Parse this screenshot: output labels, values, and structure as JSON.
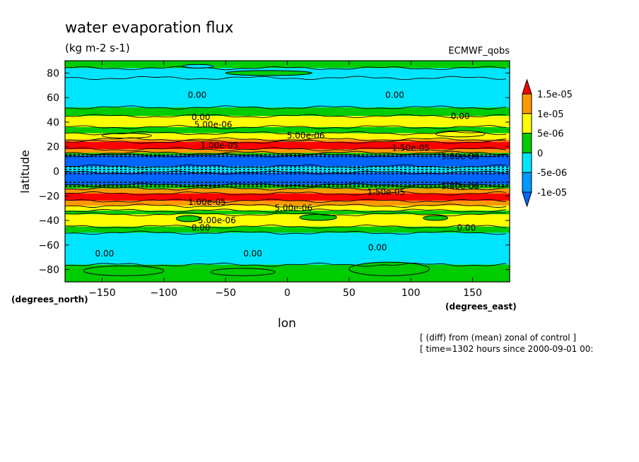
{
  "chart_data": {
    "type": "heatmap",
    "title": "water evaporation flux",
    "subtitle": "(kg m-2 s-1)",
    "model_label": "ECMWF_qobs",
    "xlabel": "lon",
    "ylabel": "latitude",
    "x_units": "(degrees_east)",
    "y_units": "(degrees_north)",
    "xlim": [
      -180,
      180
    ],
    "ylim": [
      -90,
      90
    ],
    "x_ticks": [
      -150,
      -100,
      -50,
      0,
      50,
      100,
      150
    ],
    "y_ticks": [
      80,
      60,
      40,
      20,
      0,
      -20,
      -40,
      -60,
      -80
    ],
    "x_tick_labels": [
      "−150",
      "−100",
      "−50",
      "0",
      "50",
      "100",
      "150"
    ],
    "y_tick_labels": [
      "80",
      "60",
      "40",
      "20",
      "0",
      "−20",
      "−40",
      "−60",
      "−80"
    ],
    "colorbar": {
      "labels": [
        "1.5e-05",
        "1e-05",
        "5e-06",
        "0",
        "-5e-06",
        "-1e-05"
      ],
      "bins": [
        {
          "min": 1.5e-05,
          "max": null,
          "color": "#ff0000"
        },
        {
          "min": 1e-05,
          "max": 1.5e-05,
          "color": "#ff9900"
        },
        {
          "min": 5e-06,
          "max": 1e-05,
          "color": "#ffff00"
        },
        {
          "min": 0,
          "max": 5e-06,
          "color": "#00cc00"
        },
        {
          "min": -5e-06,
          "max": 0,
          "color": "#00e5ff"
        },
        {
          "min": -1e-05,
          "max": -5e-06,
          "color": "#0099ff"
        },
        {
          "min": null,
          "max": -1e-05,
          "color": "#0066ff"
        }
      ]
    },
    "latitude_bands": [
      {
        "lat_max": 90,
        "lat_min": 84,
        "color": "#00cc00"
      },
      {
        "lat_max": 84,
        "lat_min": 76,
        "color": "#00e5ff"
      },
      {
        "lat_max": 76,
        "lat_min": 52,
        "color": "#00e5ff"
      },
      {
        "lat_max": 52,
        "lat_min": 45,
        "color": "#00cc00"
      },
      {
        "lat_max": 45,
        "lat_min": 36,
        "color": "#ffff00"
      },
      {
        "lat_max": 36,
        "lat_min": 31,
        "color": "#00cc00"
      },
      {
        "lat_max": 31,
        "lat_min": 26,
        "color": "#ffff00"
      },
      {
        "lat_max": 26,
        "lat_min": 24,
        "color": "#ff9900"
      },
      {
        "lat_max": 24,
        "lat_min": 18,
        "color": "#ff0000"
      },
      {
        "lat_max": 18,
        "lat_min": 15,
        "color": "#ff9900"
      },
      {
        "lat_max": 15,
        "lat_min": 13,
        "color": "#00cc00"
      },
      {
        "lat_max": 13,
        "lat_min": 4,
        "color": "#0066ff"
      },
      {
        "lat_max": 4,
        "lat_min": -1,
        "color": "#00e5ff"
      },
      {
        "lat_max": -1,
        "lat_min": -11,
        "color": "#0066ff"
      },
      {
        "lat_max": -11,
        "lat_min": -14,
        "color": "#00cc00"
      },
      {
        "lat_max": -14,
        "lat_min": -18,
        "color": "#ff9900"
      },
      {
        "lat_max": -18,
        "lat_min": -24,
        "color": "#ff0000"
      },
      {
        "lat_max": -24,
        "lat_min": -28,
        "color": "#ff9900"
      },
      {
        "lat_max": -28,
        "lat_min": -32,
        "color": "#ffff00"
      },
      {
        "lat_max": -32,
        "lat_min": -35,
        "color": "#00cc00"
      },
      {
        "lat_max": -35,
        "lat_min": -45,
        "color": "#ffff00"
      },
      {
        "lat_max": -45,
        "lat_min": -50,
        "color": "#00cc00"
      },
      {
        "lat_max": -50,
        "lat_min": -76,
        "color": "#00e5ff"
      },
      {
        "lat_max": -76,
        "lat_min": -90,
        "color": "#00cc00"
      }
    ],
    "patches": [
      {
        "lon": [
          -165,
          -100
        ],
        "lat": [
          -85,
          -77
        ],
        "color": "#00cc00"
      },
      {
        "lon": [
          -62,
          -10
        ],
        "lat": [
          -85,
          -79
        ],
        "color": "#00cc00"
      },
      {
        "lon": [
          50,
          115
        ],
        "lat": [
          -85,
          -74
        ],
        "color": "#00cc00"
      },
      {
        "lon": [
          -85,
          -60
        ],
        "lat": [
          87,
          84
        ],
        "color": "#00e5ff"
      },
      {
        "lon": [
          -50,
          20
        ],
        "lat": [
          82,
          78
        ],
        "color": "#00cc00"
      },
      {
        "lon": [
          -90,
          -70
        ],
        "lat": [
          -36,
          -41
        ],
        "color": "#00cc00"
      },
      {
        "lon": [
          10,
          40
        ],
        "lat": [
          -35,
          -40
        ],
        "color": "#00cc00"
      },
      {
        "lon": [
          110,
          130
        ],
        "lat": [
          -36,
          -40
        ],
        "color": "#00cc00"
      },
      {
        "lon": [
          -150,
          -110
        ],
        "lat": [
          31,
          27
        ],
        "color": "#ffff00"
      },
      {
        "lon": [
          120,
          160
        ],
        "lat": [
          33,
          28
        ],
        "color": "#ffff00"
      }
    ],
    "contour_labels": [
      {
        "text": "0.00",
        "lon": -73,
        "lat": 62
      },
      {
        "text": "0.00",
        "lon": 87,
        "lat": 62
      },
      {
        "text": "0.00",
        "lon": 140,
        "lat": 45
      },
      {
        "text": "0.00",
        "lon": -70,
        "lat": 44
      },
      {
        "text": "5.00e-06",
        "lon": -60,
        "lat": 38
      },
      {
        "text": "5.00e-06",
        "lon": 15,
        "lat": 29
      },
      {
        "text": "1.00e-05",
        "lon": -55,
        "lat": 21
      },
      {
        "text": "1.50e-05",
        "lon": 100,
        "lat": 19
      },
      {
        "text": "5.00e-06",
        "lon": 140,
        "lat": 12
      },
      {
        "text": "1.00e-05",
        "lon": -65,
        "lat": -25
      },
      {
        "text": "1.50e-05",
        "lon": 80,
        "lat": -17
      },
      {
        "text": "5.00e-06",
        "lon": 140,
        "lat": -12
      },
      {
        "text": "5.00e-06",
        "lon": 5,
        "lat": -30
      },
      {
        "text": "5.00e-06",
        "lon": -57,
        "lat": -40
      },
      {
        "text": "0.00",
        "lon": -70,
        "lat": -46
      },
      {
        "text": "0.00",
        "lon": 145,
        "lat": -46
      },
      {
        "text": "0.00",
        "lon": -148,
        "lat": -67
      },
      {
        "text": "0.00",
        "lon": -28,
        "lat": -67
      },
      {
        "text": "0.00",
        "lon": 73,
        "lat": -62
      }
    ],
    "dashed_contour_lats": [
      13.5,
      12,
      3.5,
      1.5,
      -0.5,
      -2,
      -9,
      -11,
      -12.5
    ]
  },
  "footer": {
    "line1": "[ (diff) from (mean) zonal of control ]",
    "line2": "[ time=1302 hours since 2000-09-01 00:"
  }
}
